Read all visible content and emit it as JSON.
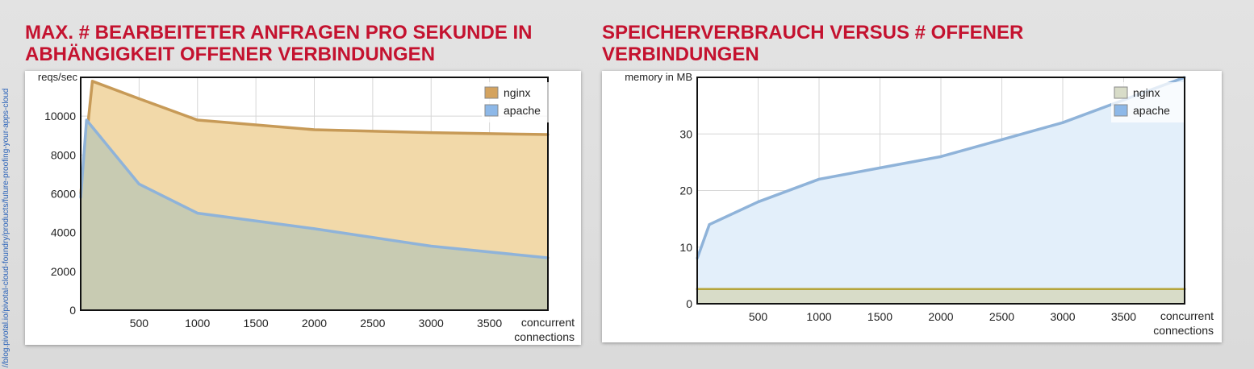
{
  "source_url": "//blog.pivotal.io/pivotal-cloud-foundry/products/future-proofing-your-apps-cloud",
  "charts": {
    "left_title": "MAX. # BEARBEITETER ANFRAGEN PRO SEKUNDE IN ABHÄNGIGKEIT OFFENER VERBINDUNGEN",
    "right_title": "SPEICHERVERBRAUCH VERSUS # OFFENER VERBINDUNGEN"
  },
  "colors": {
    "nginx_fill": "#f2d9a9",
    "nginx_line": "#c79a57",
    "nginx_legend": "#d4a35f",
    "apache_fill_left": "#c8cbb2",
    "apache_line": "#8fb3d9",
    "apache_legend": "#8db8e8",
    "apache_fill_right": "#e3effa",
    "nginx_fill_right": "#d8dcc8",
    "nginx_line_right": "#b5a53a"
  },
  "chart_data": [
    {
      "type": "area",
      "title": "MAX. # BEARBEITETER ANFRAGEN PRO SEKUNDE IN ABHÄNGIGKEIT OFFENER VERBINDUNGEN",
      "ylabel": "reqs/sec",
      "xlabel": "concurrent connections",
      "xlim": [
        0,
        4000
      ],
      "ylim": [
        0,
        12000
      ],
      "x_ticks": [
        500,
        1000,
        1500,
        2000,
        2500,
        3000,
        3500
      ],
      "y_ticks": [
        0,
        2000,
        4000,
        6000,
        8000,
        10000
      ],
      "legend": "top-right",
      "grid": true,
      "series": [
        {
          "name": "nginx",
          "color": "#d4a35f",
          "x": [
            0,
            100,
            500,
            1000,
            2000,
            3000,
            4000
          ],
          "y": [
            6000,
            11800,
            10900,
            9800,
            9300,
            9150,
            9050
          ]
        },
        {
          "name": "apache",
          "color": "#8db8e8",
          "x": [
            0,
            50,
            500,
            1000,
            2000,
            3000,
            4000
          ],
          "y": [
            5800,
            9800,
            6500,
            5000,
            4200,
            3300,
            2700
          ]
        }
      ]
    },
    {
      "type": "area",
      "title": "SPEICHERVERBRAUCH VERSUS # OFFENER VERBINDUNGEN",
      "ylabel": "memory in MB",
      "xlabel": "concurrent connections",
      "xlim": [
        0,
        4000
      ],
      "ylim": [
        0,
        40
      ],
      "x_ticks": [
        500,
        1000,
        1500,
        2000,
        2500,
        3000,
        3500
      ],
      "y_ticks": [
        0,
        10,
        20,
        30
      ],
      "legend": "top-right",
      "grid": true,
      "series": [
        {
          "name": "nginx",
          "color": "#d8dcc8",
          "x": [
            0,
            4000
          ],
          "y": [
            2.6,
            2.6
          ]
        },
        {
          "name": "apache",
          "color": "#8db8e8",
          "x": [
            0,
            100,
            500,
            1000,
            1500,
            2000,
            2500,
            3000,
            3500,
            4000
          ],
          "y": [
            8,
            14,
            18,
            22,
            24,
            26,
            29,
            32,
            36,
            40
          ]
        }
      ]
    }
  ]
}
